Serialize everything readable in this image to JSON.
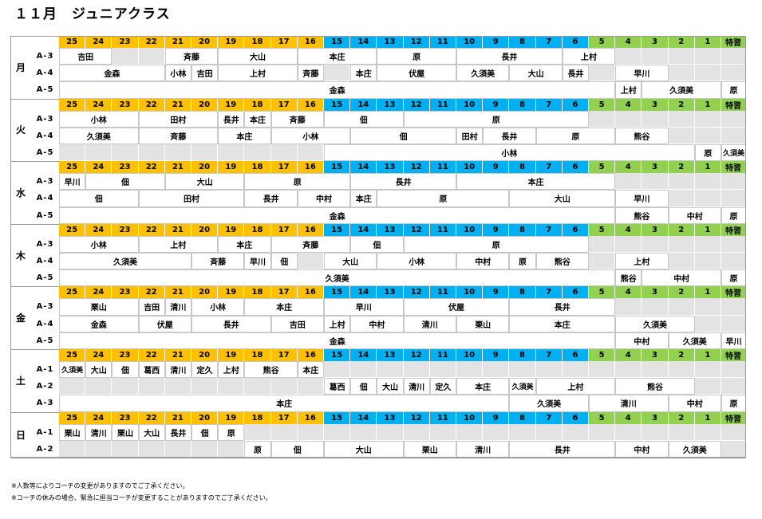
{
  "title": "１１月　ジュニアクラス",
  "headers": [
    "25",
    "24",
    "23",
    "22",
    "21",
    "20",
    "19",
    "18",
    "17",
    "16",
    "15",
    "14",
    "13",
    "12",
    "11",
    "10",
    "9",
    "8",
    "7",
    "6",
    "5",
    "4",
    "3",
    "2",
    "1",
    "特習"
  ],
  "days": [
    {
      "day": "月",
      "header_row": "top",
      "classes": [
        "A-3",
        "A-4",
        "A-5"
      ],
      "rows": [
        [
          {
            "s": 1,
            "e": 3,
            "t": "吉田"
          },
          {
            "s": 5,
            "e": 7,
            "t": "斉藤"
          },
          {
            "s": 7,
            "e": 10,
            "t": "大山"
          },
          {
            "s": 10,
            "e": 13,
            "t": "本庄"
          },
          {
            "s": 13,
            "e": 16,
            "t": "原"
          },
          {
            "s": 16,
            "e": 20,
            "t": "長井"
          },
          {
            "s": 20,
            "e": 22,
            "t": "上村"
          }
        ],
        [
          {
            "s": 1,
            "e": 5,
            "t": "金森"
          },
          {
            "s": 5,
            "e": 6,
            "t": "小林"
          },
          {
            "s": 6,
            "e": 7,
            "t": "吉田"
          },
          {
            "s": 7,
            "e": 10,
            "t": "上村"
          },
          {
            "s": 10,
            "e": 11,
            "t": "斉藤"
          },
          {
            "s": 12,
            "e": 13,
            "t": "本庄"
          },
          {
            "s": 13,
            "e": 16,
            "t": "伏屋"
          },
          {
            "s": 16,
            "e": 18,
            "t": "久須美"
          },
          {
            "s": 18,
            "e": 20,
            "t": "大山"
          },
          {
            "s": 20,
            "e": 21,
            "t": "長井"
          },
          {
            "s": 22,
            "e": 24,
            "t": "早川"
          }
        ],
        [
          {
            "s": 1,
            "e": 22,
            "t": "金森"
          },
          {
            "s": 22,
            "e": 23,
            "t": "上村"
          },
          {
            "s": 23,
            "e": 26,
            "t": "久須美"
          },
          {
            "s": 26,
            "e": 27,
            "t": "原"
          }
        ]
      ]
    },
    {
      "day": "火",
      "header_row": "top",
      "classes": [
        "A-3",
        "A-4",
        "A-5"
      ],
      "rows": [
        [
          {
            "s": 1,
            "e": 4,
            "t": "小林"
          },
          {
            "s": 4,
            "e": 7,
            "t": "田村"
          },
          {
            "s": 7,
            "e": 8,
            "t": "長井"
          },
          {
            "s": 8,
            "e": 9,
            "t": "本庄"
          },
          {
            "s": 9,
            "e": 11,
            "t": "斉藤"
          },
          {
            "s": 11,
            "e": 14,
            "t": "佃"
          },
          {
            "s": 14,
            "e": 21,
            "t": "原"
          }
        ],
        [
          {
            "s": 1,
            "e": 4,
            "t": "久須美"
          },
          {
            "s": 4,
            "e": 7,
            "t": "斉藤"
          },
          {
            "s": 7,
            "e": 9,
            "t": "本庄"
          },
          {
            "s": 9,
            "e": 12,
            "t": "小林"
          },
          {
            "s": 12,
            "e": 16,
            "t": "佃"
          },
          {
            "s": 16,
            "e": 17,
            "t": "田村"
          },
          {
            "s": 17,
            "e": 19,
            "t": "長井"
          },
          {
            "s": 19,
            "e": 22,
            "t": "原"
          },
          {
            "s": 22,
            "e": 24,
            "t": "熊谷"
          }
        ],
        [
          {
            "s": 11,
            "e": 25,
            "t": "小林"
          },
          {
            "s": 25,
            "e": 26,
            "t": "原"
          },
          {
            "s": 26,
            "e": 27,
            "t": "久須美"
          }
        ]
      ]
    },
    {
      "day": "水",
      "header_row": "top",
      "classes": [
        "A-3",
        "A-4",
        "A-5"
      ],
      "rows": [
        [
          {
            "s": 1,
            "e": 2,
            "t": "早川"
          },
          {
            "s": 2,
            "e": 5,
            "t": "佃"
          },
          {
            "s": 5,
            "e": 8,
            "t": "大山"
          },
          {
            "s": 8,
            "e": 12,
            "t": "原"
          },
          {
            "s": 12,
            "e": 16,
            "t": "長井"
          },
          {
            "s": 16,
            "e": 22,
            "t": "本庄"
          }
        ],
        [
          {
            "s": 1,
            "e": 4,
            "t": "佃"
          },
          {
            "s": 4,
            "e": 8,
            "t": "田村"
          },
          {
            "s": 8,
            "e": 10,
            "t": "長井"
          },
          {
            "s": 10,
            "e": 12,
            "t": "中村"
          },
          {
            "s": 12,
            "e": 13,
            "t": "本庄"
          },
          {
            "s": 13,
            "e": 18,
            "t": "原"
          },
          {
            "s": 18,
            "e": 22,
            "t": "大山"
          },
          {
            "s": 22,
            "e": 24,
            "t": "早川"
          }
        ],
        [
          {
            "s": 1,
            "e": 22,
            "t": "金森"
          },
          {
            "s": 22,
            "e": 24,
            "t": "熊谷"
          },
          {
            "s": 24,
            "e": 26,
            "t": "中村"
          },
          {
            "s": 26,
            "e": 27,
            "t": "原"
          }
        ]
      ]
    },
    {
      "day": "木",
      "header_row": "top",
      "classes": [
        "A-3",
        "A-4",
        "A-5"
      ],
      "rows": [
        [
          {
            "s": 1,
            "e": 4,
            "t": "小林"
          },
          {
            "s": 4,
            "e": 7,
            "t": "上村"
          },
          {
            "s": 7,
            "e": 9,
            "t": "本庄"
          },
          {
            "s": 9,
            "e": 12,
            "t": "斉藤"
          },
          {
            "s": 12,
            "e": 14,
            "t": "佃"
          },
          {
            "s": 14,
            "e": 21,
            "t": "原"
          }
        ],
        [
          {
            "s": 1,
            "e": 6,
            "t": "久須美"
          },
          {
            "s": 6,
            "e": 8,
            "t": "斉藤"
          },
          {
            "s": 8,
            "e": 9,
            "t": "早川"
          },
          {
            "s": 9,
            "e": 10,
            "t": "佃"
          },
          {
            "s": 11,
            "e": 13,
            "t": "大山"
          },
          {
            "s": 13,
            "e": 16,
            "t": "小林"
          },
          {
            "s": 16,
            "e": 18,
            "t": "中村"
          },
          {
            "s": 18,
            "e": 19,
            "t": "原"
          },
          {
            "s": 19,
            "e": 21,
            "t": "熊谷"
          },
          {
            "s": 22,
            "e": 24,
            "t": "上村"
          }
        ],
        [
          {
            "s": 1,
            "e": 22,
            "t": "久須美"
          },
          {
            "s": 22,
            "e": 23,
            "t": "熊谷"
          },
          {
            "s": 23,
            "e": 26,
            "t": "中村"
          },
          {
            "s": 26,
            "e": 27,
            "t": "原"
          }
        ]
      ]
    },
    {
      "day": "金",
      "header_row": "top",
      "classes": [
        "A-3",
        "A-4",
        "A-5"
      ],
      "rows": [
        [
          {
            "s": 1,
            "e": 4,
            "t": "栗山"
          },
          {
            "s": 4,
            "e": 5,
            "t": "吉田"
          },
          {
            "s": 5,
            "e": 6,
            "t": "清川"
          },
          {
            "s": 6,
            "e": 8,
            "t": "小林"
          },
          {
            "s": 8,
            "e": 11,
            "t": "本庄"
          },
          {
            "s": 11,
            "e": 14,
            "t": "早川"
          },
          {
            "s": 14,
            "e": 18,
            "t": "伏屋"
          },
          {
            "s": 18,
            "e": 22,
            "t": "長井"
          }
        ],
        [
          {
            "s": 1,
            "e": 4,
            "t": "金森"
          },
          {
            "s": 4,
            "e": 6,
            "t": "伏屋"
          },
          {
            "s": 6,
            "e": 9,
            "t": "長井"
          },
          {
            "s": 9,
            "e": 11,
            "t": "吉田"
          },
          {
            "s": 11,
            "e": 12,
            "t": "上村"
          },
          {
            "s": 12,
            "e": 14,
            "t": "中村"
          },
          {
            "s": 14,
            "e": 16,
            "t": "清川"
          },
          {
            "s": 16,
            "e": 18,
            "t": "栗山"
          },
          {
            "s": 18,
            "e": 22,
            "t": "本庄"
          },
          {
            "s": 22,
            "e": 25,
            "t": "久須美"
          }
        ],
        [
          {
            "s": 1,
            "e": 22,
            "t": "金森"
          },
          {
            "s": 22,
            "e": 24,
            "t": "中村"
          },
          {
            "s": 24,
            "e": 26,
            "t": "久須美"
          },
          {
            "s": 26,
            "e": 27,
            "t": "早川"
          }
        ]
      ]
    },
    {
      "day": "土",
      "header_row": "top",
      "classes": [
        "A-1",
        "A-2",
        "A-3"
      ],
      "rows": [
        [
          {
            "s": 1,
            "e": 2,
            "t": "久須美"
          },
          {
            "s": 2,
            "e": 3,
            "t": "大山"
          },
          {
            "s": 3,
            "e": 4,
            "t": "佃"
          },
          {
            "s": 4,
            "e": 5,
            "t": "葛西"
          },
          {
            "s": 5,
            "e": 6,
            "t": "清川"
          },
          {
            "s": 6,
            "e": 7,
            "t": "定久"
          },
          {
            "s": 7,
            "e": 8,
            "t": "上村"
          },
          {
            "s": 8,
            "e": 10,
            "t": "熊谷"
          },
          {
            "s": 10,
            "e": 11,
            "t": "本庄"
          }
        ],
        [
          {
            "s": 11,
            "e": 12,
            "t": "葛西"
          },
          {
            "s": 12,
            "e": 13,
            "t": "佃"
          },
          {
            "s": 13,
            "e": 14,
            "t": "大山"
          },
          {
            "s": 14,
            "e": 15,
            "t": "清川"
          },
          {
            "s": 15,
            "e": 16,
            "t": "定久"
          },
          {
            "s": 16,
            "e": 18,
            "t": "本庄"
          },
          {
            "s": 18,
            "e": 19,
            "t": "久須美"
          },
          {
            "s": 19,
            "e": 22,
            "t": "上村"
          },
          {
            "s": 22,
            "e": 25,
            "t": "熊谷"
          }
        ],
        [
          {
            "s": 1,
            "e": 18,
            "t": "本庄"
          },
          {
            "s": 18,
            "e": 21,
            "t": "久須美"
          },
          {
            "s": 21,
            "e": 24,
            "t": "清川"
          },
          {
            "s": 24,
            "e": 26,
            "t": "中村"
          },
          {
            "s": 26,
            "e": 27,
            "t": "原"
          }
        ]
      ]
    },
    {
      "day": "日",
      "header_row": "top",
      "classes": [
        "A-1",
        "A-2"
      ],
      "rows": [
        [
          {
            "s": 1,
            "e": 2,
            "t": "栗山"
          },
          {
            "s": 2,
            "e": 3,
            "t": "清川"
          },
          {
            "s": 3,
            "e": 4,
            "t": "栗山"
          },
          {
            "s": 4,
            "e": 5,
            "t": "大山"
          },
          {
            "s": 5,
            "e": 6,
            "t": "長井"
          },
          {
            "s": 6,
            "e": 7,
            "t": "佃"
          },
          {
            "s": 7,
            "e": 8,
            "t": "原"
          }
        ],
        [
          {
            "s": 8,
            "e": 9,
            "t": "原"
          },
          {
            "s": 9,
            "e": 11,
            "t": "佃"
          },
          {
            "s": 11,
            "e": 14,
            "t": "大山"
          },
          {
            "s": 14,
            "e": 16,
            "t": "栗山"
          },
          {
            "s": 16,
            "e": 18,
            "t": "清川"
          },
          {
            "s": 18,
            "e": 22,
            "t": "長井"
          },
          {
            "s": 22,
            "e": 24,
            "t": "中村"
          },
          {
            "s": 24,
            "e": 26,
            "t": "久須美"
          }
        ]
      ]
    }
  ],
  "notes": [
    "※人数等によりコーチの変更がありますのでご了承ください。",
    "※コーチの休みの場合、緊急に担当コーチが変更することがありますのでご了承ください。"
  ]
}
